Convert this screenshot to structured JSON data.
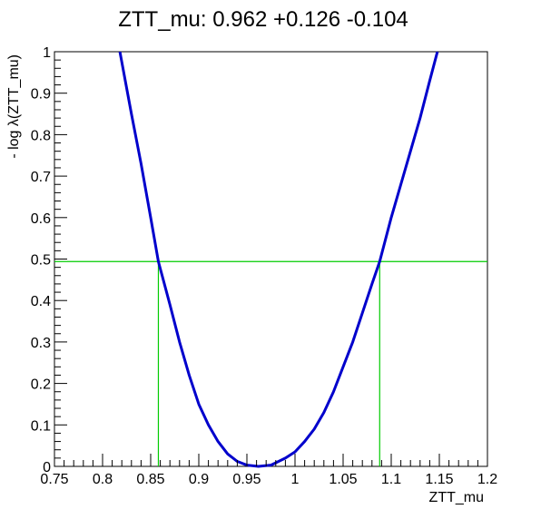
{
  "chart_data": {
    "type": "line",
    "title": "ZTT_mu: 0.962 +0.126 -0.104",
    "xlabel": "ZTT_mu",
    "ylabel": "- log λ(ZTT_mu)",
    "xlim": [
      0.75,
      1.2
    ],
    "ylim": [
      0,
      1
    ],
    "grid": false,
    "x_ticks": [
      "0.75",
      "0.8",
      "0.85",
      "0.9",
      "0.95",
      "1",
      "1.05",
      "1.1",
      "1.15",
      "1.2"
    ],
    "y_ticks": [
      "0",
      "0.1",
      "0.2",
      "0.3",
      "0.4",
      "0.5",
      "0.6",
      "0.7",
      "0.8",
      "0.9",
      "1"
    ],
    "series": [
      {
        "color": "#0000cc",
        "x": [
          0.818,
          0.83,
          0.84,
          0.85,
          0.858,
          0.87,
          0.88,
          0.89,
          0.9,
          0.91,
          0.92,
          0.93,
          0.94,
          0.95,
          0.962,
          0.975,
          0.99,
          1.0,
          1.01,
          1.02,
          1.03,
          1.04,
          1.05,
          1.06,
          1.07,
          1.08,
          1.088,
          1.1,
          1.11,
          1.12,
          1.13,
          1.14,
          1.148
        ],
        "y": [
          1.0,
          0.85,
          0.73,
          0.6,
          0.494,
          0.39,
          0.3,
          0.22,
          0.15,
          0.1,
          0.06,
          0.03,
          0.012,
          0.003,
          0.0,
          0.003,
          0.02,
          0.035,
          0.06,
          0.09,
          0.13,
          0.18,
          0.24,
          0.3,
          0.37,
          0.44,
          0.494,
          0.6,
          0.68,
          0.76,
          0.84,
          0.93,
          1.0
        ]
      }
    ],
    "reference_lines": {
      "color": "#00cc00",
      "horizontal_y": 0.494,
      "vertical_x": [
        0.858,
        1.088
      ]
    }
  }
}
